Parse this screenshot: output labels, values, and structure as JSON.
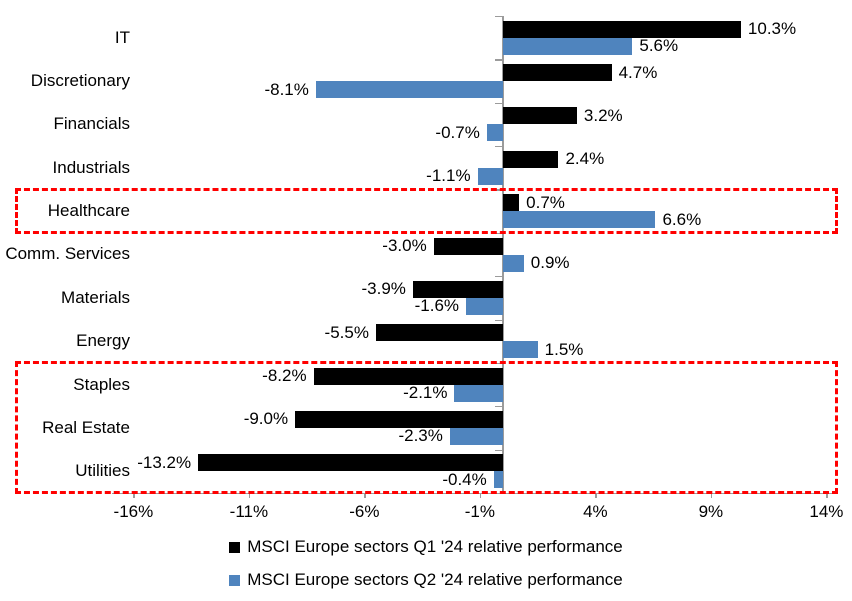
{
  "chart_data": {
    "type": "bar",
    "orientation": "horizontal",
    "title": "",
    "categories": [
      "IT",
      "Discretionary",
      "Financials",
      "Industrials",
      "Healthcare",
      "Comm. Services",
      "Materials",
      "Energy",
      "Staples",
      "Real Estate",
      "Utilities"
    ],
    "series": [
      {
        "name": "MSCI Europe sectors Q1 '24 relative performance",
        "color": "#000000",
        "values": [
          10.3,
          4.7,
          3.2,
          2.4,
          0.7,
          -3.0,
          -3.9,
          -5.5,
          -8.2,
          -9.0,
          -13.2
        ]
      },
      {
        "name": "MSCI Europe sectors Q2 '24 relative performance",
        "color": "#4f84be",
        "values": [
          5.6,
          -8.1,
          -0.7,
          -1.1,
          6.6,
          0.9,
          -1.6,
          1.5,
          -2.1,
          -2.3,
          -0.4
        ]
      }
    ],
    "data_labels": true,
    "data_label_decimals": 1,
    "data_label_suffix": "%",
    "x_axis": {
      "min": -16,
      "max": 14,
      "tick_values": [
        -16,
        -11,
        -6,
        -1,
        4,
        9,
        14
      ],
      "tick_labels": [
        "-16%",
        "-11%",
        "-6%",
        "-1%",
        "4%",
        "9%",
        "14%"
      ]
    },
    "grid": false,
    "legend_position": "bottom",
    "axis_color": "#9b9b9b",
    "text_color": "#000000",
    "highlight_boxes": [
      {
        "categories": [
          "Healthcare"
        ],
        "color": "#ff0000",
        "style": "dashed"
      },
      {
        "categories": [
          "Staples",
          "Real Estate",
          "Utilities"
        ],
        "color": "#ff0000",
        "style": "dashed"
      }
    ]
  }
}
